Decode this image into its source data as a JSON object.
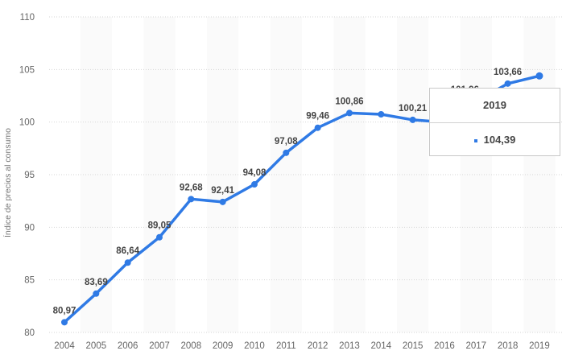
{
  "chart_data": {
    "type": "line",
    "title": "",
    "xlabel": "",
    "ylabel": "Índice de precios al consumo",
    "ylim": [
      80,
      110
    ],
    "yticks": [
      80,
      85,
      90,
      95,
      100,
      105,
      110
    ],
    "grid": true,
    "categories": [
      "2004",
      "2005",
      "2006",
      "2007",
      "2008",
      "2009",
      "2010",
      "2011",
      "2012",
      "2013",
      "2014",
      "2015",
      "2016",
      "2017",
      "2018",
      "2019"
    ],
    "values": [
      80.97,
      83.69,
      86.64,
      89.05,
      92.68,
      92.41,
      94.08,
      97.08,
      99.46,
      100.86,
      100.74,
      100.21,
      99.98,
      101.96,
      103.66,
      104.39
    ],
    "labels": [
      "80,97",
      "83,69",
      "86,64",
      "89,05",
      "92,68",
      "92,41",
      "94,08",
      "97,08",
      "99,46",
      "100,86",
      null,
      "100,21",
      null,
      "101,96",
      "103,66",
      null
    ],
    "color": "#2f7ae5"
  },
  "tooltip": {
    "title": "2019",
    "value": "104,39"
  }
}
